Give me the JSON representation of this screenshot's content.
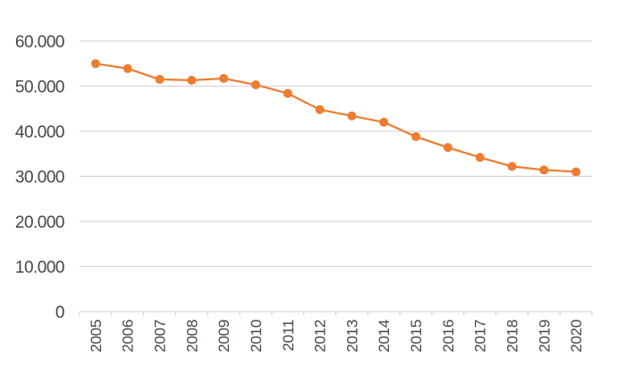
{
  "chart_data": {
    "type": "line",
    "title": "",
    "xlabel": "",
    "ylabel": "",
    "categories": [
      "2005",
      "2006",
      "2007",
      "2008",
      "2009",
      "2010",
      "2011",
      "2012",
      "2013",
      "2014",
      "2015",
      "2016",
      "2017",
      "2018",
      "2019",
      "2020"
    ],
    "series": [
      {
        "name": "",
        "color": "#ed7d31",
        "values": [
          55000,
          53900,
          51500,
          51300,
          51700,
          50300,
          48400,
          44800,
          43400,
          42000,
          38800,
          36400,
          34200,
          32200,
          31400,
          31000
        ]
      }
    ],
    "ylim": [
      0,
      60000
    ],
    "yticks": [
      0,
      10000,
      20000,
      30000,
      40000,
      50000,
      60000
    ],
    "ytick_labels": [
      "0",
      "10.000",
      "20.000",
      "30.000",
      "40.000",
      "50.000",
      "60.000"
    ],
    "grid": true,
    "legend": null
  },
  "colors": {
    "line": "#ed7d31",
    "grid": "#d9d6d3",
    "text": "#4a443f"
  }
}
